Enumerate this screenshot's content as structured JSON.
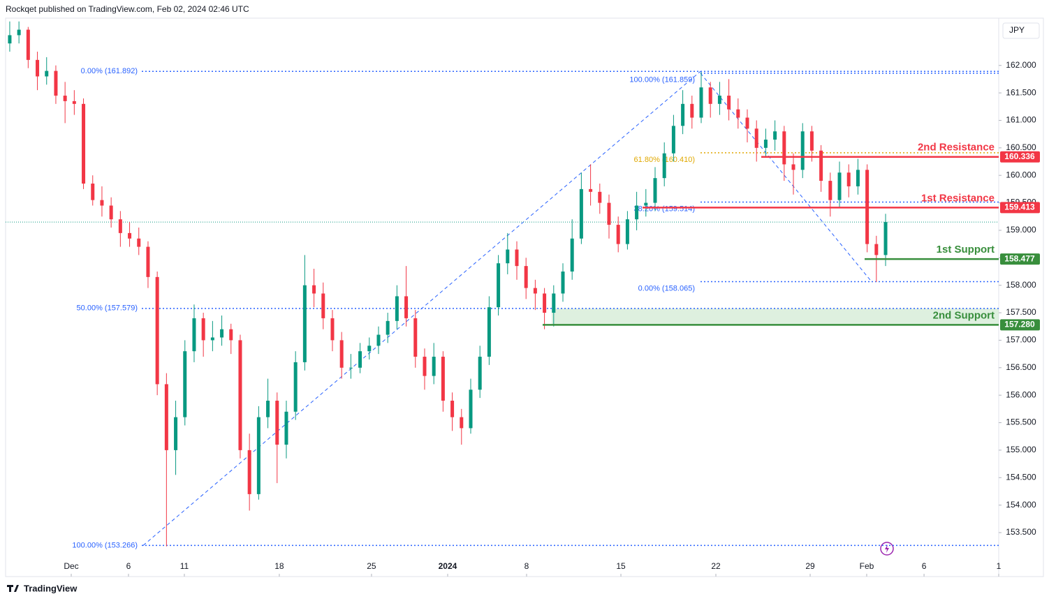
{
  "header": {
    "text": "Rockqet published on TradingView.com, Feb 02, 2024 02:46 UTC"
  },
  "footer": {
    "brand": "TradingView"
  },
  "chart_data": {
    "type": "candlestick",
    "currency": "JPY",
    "colors": {
      "up": "#089981",
      "down": "#f23645"
    },
    "ohlc": [
      [
        162.4,
        162.8,
        162.25,
        162.55
      ],
      [
        162.55,
        162.8,
        162.4,
        162.65
      ],
      [
        162.65,
        162.7,
        161.95,
        162.1
      ],
      [
        162.1,
        162.25,
        161.55,
        161.8
      ],
      [
        161.8,
        162.15,
        161.65,
        161.9
      ],
      [
        161.9,
        162.0,
        161.3,
        161.45
      ],
      [
        161.45,
        161.7,
        160.95,
        161.35
      ],
      [
        161.35,
        161.55,
        161.1,
        161.3
      ],
      [
        161.3,
        161.4,
        159.75,
        159.85
      ],
      [
        159.85,
        160.0,
        159.45,
        159.55
      ],
      [
        159.55,
        159.8,
        159.25,
        159.45
      ],
      [
        159.45,
        159.6,
        159.05,
        159.2
      ],
      [
        159.2,
        159.35,
        158.7,
        158.95
      ],
      [
        158.95,
        159.15,
        158.7,
        158.85
      ],
      [
        158.85,
        159.05,
        158.55,
        158.7
      ],
      [
        158.7,
        158.8,
        157.95,
        158.15
      ],
      [
        158.15,
        158.25,
        156.0,
        156.2
      ],
      [
        156.2,
        156.4,
        153.25,
        155.0
      ],
      [
        155.0,
        155.9,
        154.55,
        155.6
      ],
      [
        155.6,
        157.0,
        155.45,
        156.8
      ],
      [
        156.8,
        157.65,
        156.6,
        157.4
      ],
      [
        157.4,
        157.5,
        156.7,
        157.0
      ],
      [
        157.0,
        157.35,
        156.8,
        157.05
      ],
      [
        157.05,
        157.45,
        156.9,
        157.2
      ],
      [
        157.2,
        157.3,
        156.75,
        157.0
      ],
      [
        157.0,
        157.1,
        154.85,
        155.0
      ],
      [
        155.0,
        155.3,
        153.9,
        154.2
      ],
      [
        154.2,
        155.8,
        154.1,
        155.6
      ],
      [
        155.6,
        156.3,
        155.4,
        155.9
      ],
      [
        155.9,
        156.05,
        154.4,
        155.1
      ],
      [
        155.1,
        155.9,
        154.85,
        155.7
      ],
      [
        155.7,
        156.8,
        155.55,
        156.6
      ],
      [
        156.6,
        158.55,
        156.45,
        158.0
      ],
      [
        158.0,
        158.3,
        157.6,
        157.85
      ],
      [
        157.85,
        158.05,
        157.2,
        157.4
      ],
      [
        157.4,
        157.55,
        156.8,
        157.0
      ],
      [
        157.0,
        157.15,
        156.3,
        156.5
      ],
      [
        156.5,
        156.75,
        156.3,
        156.5
      ],
      [
        156.5,
        156.95,
        156.4,
        156.8
      ],
      [
        156.8,
        157.05,
        156.65,
        156.9
      ],
      [
        156.9,
        157.25,
        156.75,
        157.1
      ],
      [
        157.1,
        157.5,
        156.95,
        157.35
      ],
      [
        157.35,
        158.0,
        157.2,
        157.8
      ],
      [
        157.8,
        158.35,
        157.25,
        157.4
      ],
      [
        157.4,
        157.55,
        156.5,
        156.7
      ],
      [
        156.7,
        156.85,
        156.1,
        156.35
      ],
      [
        156.35,
        156.95,
        156.2,
        156.7
      ],
      [
        156.7,
        156.8,
        155.7,
        155.9
      ],
      [
        155.9,
        156.05,
        155.35,
        155.6
      ],
      [
        155.6,
        155.75,
        155.1,
        155.4
      ],
      [
        155.4,
        156.3,
        155.3,
        156.1
      ],
      [
        156.1,
        156.9,
        155.95,
        156.7
      ],
      [
        156.7,
        157.8,
        156.55,
        157.6
      ],
      [
        157.6,
        158.55,
        157.45,
        158.4
      ],
      [
        158.4,
        158.95,
        158.2,
        158.65
      ],
      [
        158.65,
        158.8,
        158.1,
        158.35
      ],
      [
        158.35,
        158.5,
        157.75,
        157.95
      ],
      [
        157.95,
        158.1,
        157.55,
        157.85
      ],
      [
        157.85,
        157.95,
        157.2,
        157.5
      ],
      [
        157.5,
        158.0,
        157.25,
        157.85
      ],
      [
        157.85,
        158.4,
        157.7,
        158.25
      ],
      [
        158.25,
        159.2,
        158.1,
        158.85
      ],
      [
        158.85,
        160.05,
        158.75,
        159.75
      ],
      [
        159.75,
        160.2,
        159.45,
        159.7
      ],
      [
        159.7,
        159.85,
        159.3,
        159.5
      ],
      [
        159.5,
        159.65,
        158.85,
        159.1
      ],
      [
        159.1,
        159.25,
        158.6,
        158.75
      ],
      [
        158.75,
        159.35,
        158.65,
        159.2
      ],
      [
        159.2,
        159.7,
        159.0,
        159.45
      ],
      [
        159.45,
        159.75,
        159.25,
        159.5
      ],
      [
        159.5,
        160.15,
        159.35,
        159.95
      ],
      [
        159.95,
        160.6,
        159.8,
        160.4
      ],
      [
        160.4,
        161.1,
        160.25,
        160.9
      ],
      [
        160.9,
        161.55,
        160.75,
        161.3
      ],
      [
        161.3,
        161.45,
        160.85,
        161.05
      ],
      [
        161.05,
        161.88,
        160.95,
        161.6
      ],
      [
        161.6,
        161.7,
        161.05,
        161.3
      ],
      [
        161.3,
        161.7,
        161.1,
        161.45
      ],
      [
        161.45,
        161.75,
        161.0,
        161.2
      ],
      [
        161.2,
        161.4,
        160.85,
        161.05
      ],
      [
        161.05,
        161.2,
        160.6,
        160.85
      ],
      [
        160.85,
        161.0,
        160.25,
        160.5
      ],
      [
        160.5,
        160.85,
        160.35,
        160.65
      ],
      [
        160.65,
        161.0,
        160.45,
        160.8
      ],
      [
        160.8,
        160.9,
        159.9,
        160.2
      ],
      [
        160.2,
        160.4,
        159.65,
        160.1
      ],
      [
        160.1,
        160.95,
        159.95,
        160.8
      ],
      [
        160.8,
        160.9,
        160.25,
        160.45
      ],
      [
        160.45,
        160.55,
        159.7,
        159.9
      ],
      [
        159.9,
        160.05,
        159.25,
        159.55
      ],
      [
        159.55,
        160.25,
        159.4,
        160.05
      ],
      [
        160.05,
        160.2,
        159.6,
        159.8
      ],
      [
        159.8,
        160.3,
        159.65,
        160.1
      ],
      [
        160.1,
        160.2,
        158.6,
        158.75
      ],
      [
        158.75,
        158.9,
        158.06,
        158.55
      ],
      [
        158.55,
        159.3,
        158.35,
        159.15
      ]
    ],
    "xlim": [
      -0.45,
      107.27
    ],
    "xticks": [
      {
        "value": 6.67,
        "label": "Dec"
      },
      {
        "value": 12.88,
        "label": "6"
      },
      {
        "value": 18.94,
        "label": "11"
      },
      {
        "value": 29.24,
        "label": "18"
      },
      {
        "value": 39.24,
        "label": "25"
      },
      {
        "value": 47.5,
        "label": "2024"
      },
      {
        "value": 56.06,
        "label": "8"
      },
      {
        "value": 66.29,
        "label": "15"
      },
      {
        "value": 76.59,
        "label": "22"
      },
      {
        "value": 86.82,
        "label": "29"
      },
      {
        "value": 92.95,
        "label": "Feb"
      },
      {
        "value": 99.17,
        "label": "6"
      },
      {
        "value": 107.27,
        "label": "1"
      }
    ],
    "ylim": [
      152.7,
      162.86
    ],
    "yticks": [
      {
        "value": 153.5,
        "label": "153.500"
      },
      {
        "value": 154,
        "label": "154.000"
      },
      {
        "value": 154.5,
        "label": "154.500"
      },
      {
        "value": 155,
        "label": "155.000"
      },
      {
        "value": 155.5,
        "label": "155.500"
      },
      {
        "value": 156,
        "label": "156.000"
      },
      {
        "value": 156.5,
        "label": "156.500"
      },
      {
        "value": 157,
        "label": "157.000"
      },
      {
        "value": 157.5,
        "label": "157.500"
      },
      {
        "value": 158,
        "label": "158.000"
      },
      {
        "value": 158.5,
        "label": "158.500"
      },
      {
        "value": 159,
        "label": "159.000"
      },
      {
        "value": 159.5,
        "label": "159.500"
      },
      {
        "value": 160,
        "label": "160.000"
      },
      {
        "value": 160.5,
        "label": "160.500"
      },
      {
        "value": 161,
        "label": "161.000"
      },
      {
        "value": 161.5,
        "label": "161.500"
      },
      {
        "value": 162,
        "label": "162.000"
      }
    ],
    "fib_retracements": [
      {
        "levels": [
          {
            "value": 161.892,
            "label": "0.00% (161.892)",
            "color": "#2962ff"
          },
          {
            "value": 157.579,
            "label": "50.00% (157.579)",
            "color": "#2962ff"
          },
          {
            "value": 153.266,
            "label": "100.00% (153.266)",
            "color": "#2962ff"
          }
        ]
      },
      {
        "levels": [
          {
            "value": 161.859,
            "label": "100.00% (161.859)",
            "color": "#2962ff"
          },
          {
            "value": 160.41,
            "label": "61.80% (160.410)",
            "color": "#e0a800"
          },
          {
            "value": 159.514,
            "label": "38.20% (159.514)",
            "color": "#2962ff"
          },
          {
            "value": 158.065,
            "label": "0.00% (158.065)",
            "color": "#2962ff"
          }
        ]
      }
    ],
    "levels": [
      {
        "name": "2nd Resistance",
        "value": 160.336,
        "color": "#f23645"
      },
      {
        "name": "1st Resistance",
        "value": 159.413,
        "color": "#f23645"
      },
      {
        "name": "1st Support",
        "value": 158.477,
        "color": "#388e3c"
      },
      {
        "name": "2nd Support",
        "value": 157.28,
        "label": "157.280",
        "color": "#388e3c"
      }
    ]
  }
}
